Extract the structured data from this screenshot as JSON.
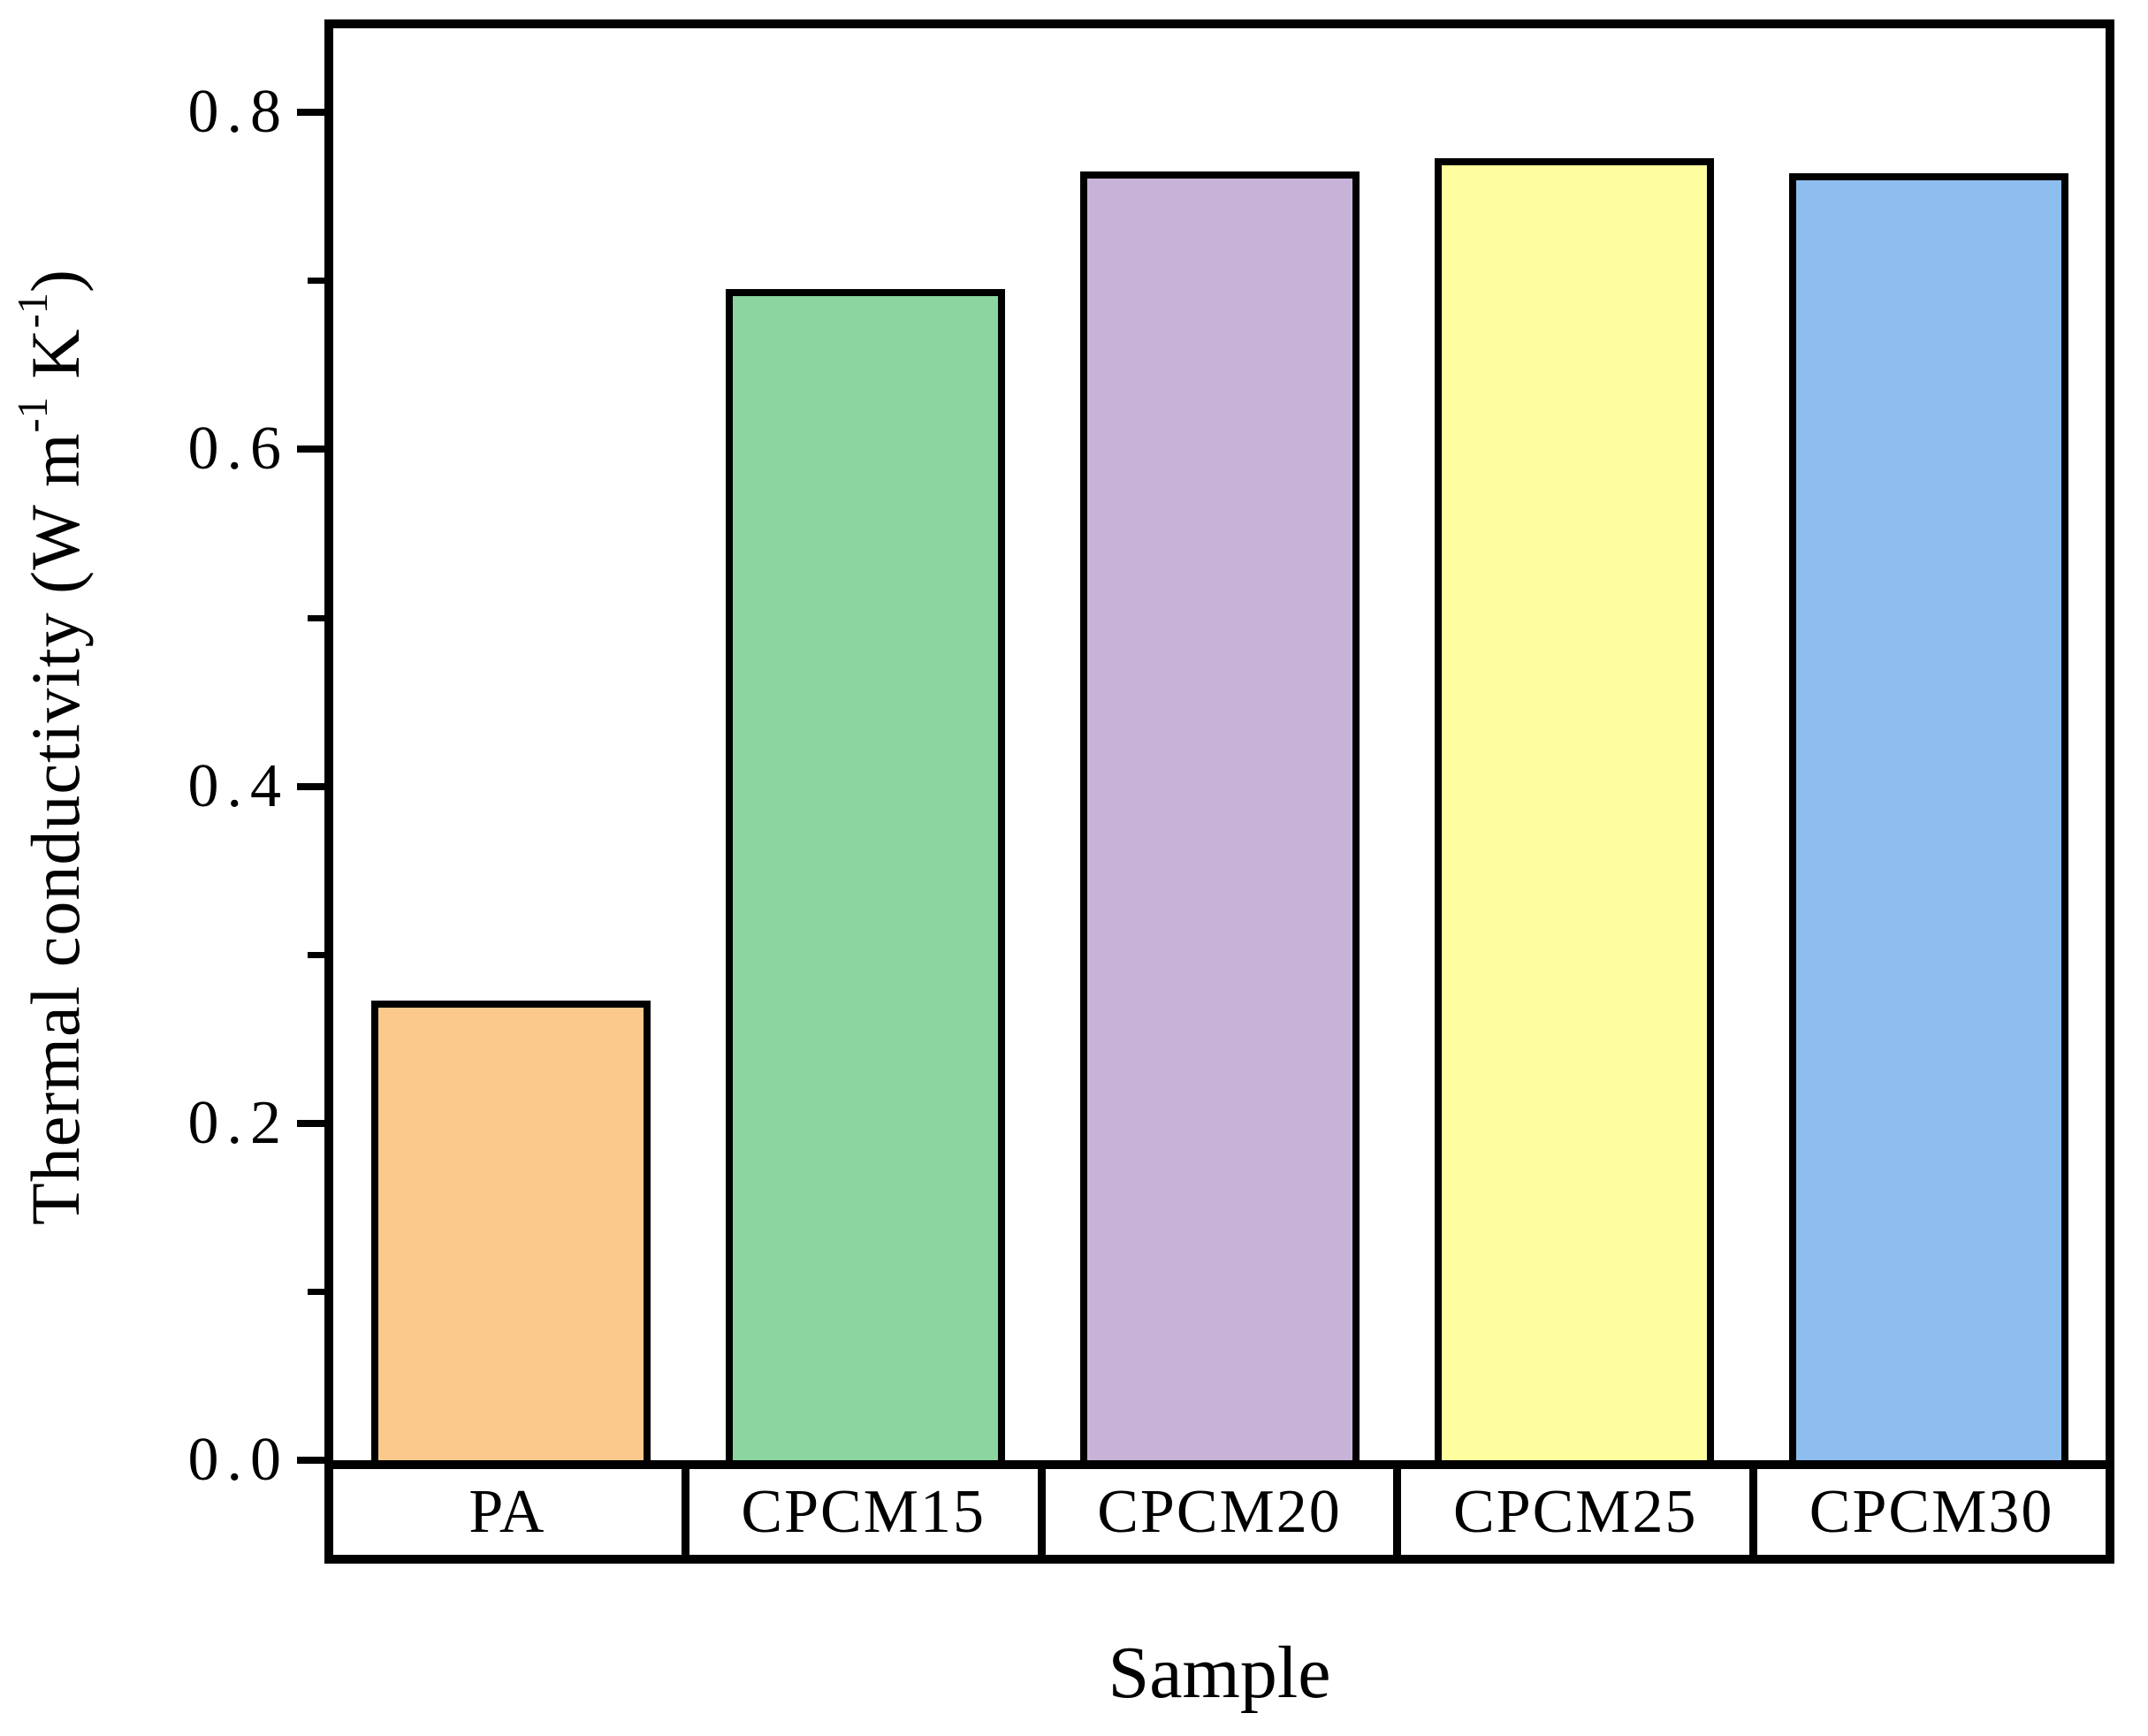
{
  "figure": {
    "background": "#ffffff",
    "frame_color": "#000000"
  },
  "y_axis": {
    "title_parts": {
      "main": "Thermal conductivity (W m",
      "sup1": "-1",
      "mid": " K",
      "sup2": "-1",
      "end": ")"
    },
    "tick_labels": [
      "0.0",
      "0.2",
      "0.4",
      "0.6",
      "0.8"
    ],
    "minor_ticks": [
      0.1,
      0.3,
      0.5,
      0.7
    ]
  },
  "x_axis": {
    "title": "Sample",
    "categories": [
      "PA",
      "CPCM15",
      "CPCM20",
      "CPCM25",
      "CPCM30"
    ]
  },
  "chart_data": {
    "type": "bar",
    "categories": [
      "PA",
      "CPCM15",
      "CPCM20",
      "CPCM25",
      "CPCM30"
    ],
    "values": [
      0.273,
      0.695,
      0.765,
      0.773,
      0.764
    ],
    "bar_colors": [
      "#FBC98C",
      "#8BD5A0",
      "#C7B2D8",
      "#FEFE9F",
      "#8EBDEF"
    ],
    "bar_edge_color": "#000000",
    "title": "",
    "xlabel": "Sample",
    "ylabel": "Thermal conductivity (W m-1 K-1)",
    "ylim": [
      0,
      0.85
    ],
    "yticks": [
      0.0,
      0.2,
      0.4,
      0.6,
      0.8
    ],
    "grid": false,
    "legend": false
  }
}
